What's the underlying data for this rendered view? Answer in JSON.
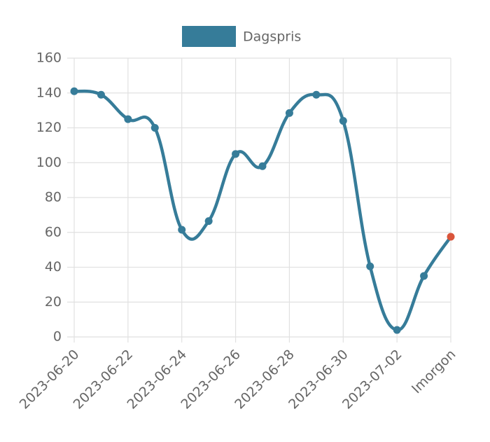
{
  "chart_data": {
    "type": "line",
    "categories": [
      "2023-06-20",
      null,
      "2023-06-22",
      null,
      "2023-06-24",
      null,
      "2023-06-26",
      null,
      "2023-06-28",
      null,
      "2023-06-30",
      null,
      "2023-07-02",
      null,
      "Imorgon"
    ],
    "series": [
      {
        "name": "Dagspris",
        "color": "#367c99",
        "last_point_color": "#d9553b",
        "values": [
          141,
          139,
          125,
          120,
          61.5,
          66.5,
          105,
          98,
          128.5,
          139,
          124,
          40.5,
          4,
          35,
          57.5
        ]
      }
    ],
    "ylim": [
      0,
      160
    ],
    "yticks": [
      0,
      20,
      40,
      60,
      80,
      100,
      120,
      140,
      160
    ],
    "grid": true,
    "legend": "top"
  }
}
